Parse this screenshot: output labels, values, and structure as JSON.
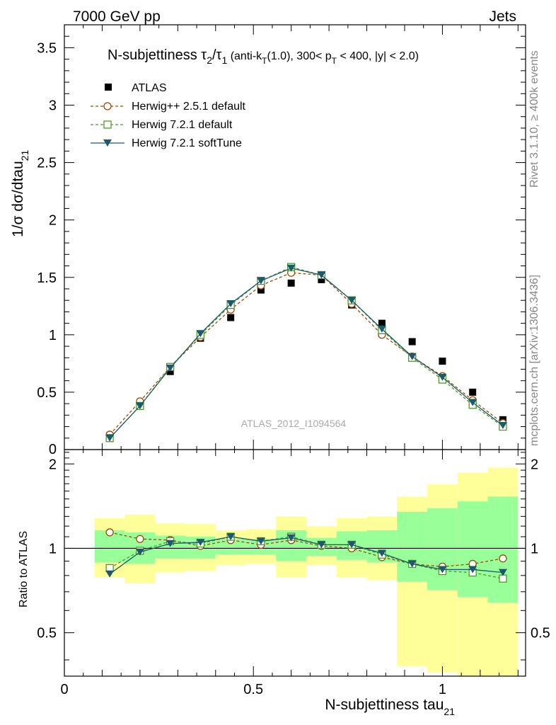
{
  "header": {
    "energy": "7000 GeV pp",
    "category": "Jets"
  },
  "side_labels": {
    "rivet": "Rivet 3.1.10, ≥ 400k events",
    "mcplots": "mcplots.cern.ch [arXiv:1306.3436]"
  },
  "colors": {
    "atlas": "#000000",
    "herwigpp": "#a04800",
    "herwig721": "#4a9c2a",
    "softtune": "#1c5a6a",
    "band_yellow": "#ffff99",
    "band_green": "#99ff99"
  },
  "chart_data": [
    {
      "type": "scatter",
      "panel": "main",
      "title": {
        "prefix": "N-subjettiness ",
        "t1": "τ",
        "s1": "2",
        "slash": "/",
        "t2": "τ",
        "s2": "1",
        "paren_a": " (anti-k",
        "sub_T1": "T",
        "paren_b": "(1.0), 300< p",
        "sub_T2": "T",
        "paren_c": " < 400, |y| < 2.0)"
      },
      "ylabel": {
        "main": "1/σ dσ/dtau",
        "sub": "21"
      },
      "xlim": [
        0,
        1.22
      ],
      "ylim": [
        0,
        3.7
      ],
      "y_ticks": [
        0.5,
        1,
        1.5,
        2,
        2.5,
        3,
        3.5
      ],
      "y_tick_labels": [
        "0.5",
        "1",
        "1.5",
        "2",
        "2.5",
        "3",
        "3.5"
      ],
      "y_zero_label": "0",
      "watermark": "ATLAS_2012_I1094564",
      "legend_position": "top-left",
      "x": [
        0.12,
        0.2,
        0.28,
        0.36,
        0.44,
        0.52,
        0.6,
        0.68,
        0.76,
        0.84,
        0.92,
        1.0,
        1.08,
        1.16
      ],
      "series": [
        {
          "name": "ATLAS",
          "marker": "square-filled",
          "values": [
            0.12,
            0.39,
            0.68,
            0.97,
            1.15,
            1.39,
            1.45,
            1.48,
            1.26,
            1.1,
            0.94,
            0.77,
            0.5,
            0.26
          ]
        },
        {
          "name": "Herwig++ 2.5.1 default",
          "marker": "circle-open",
          "values": [
            0.13,
            0.42,
            0.72,
            0.98,
            1.22,
            1.43,
            1.54,
            1.52,
            1.27,
            1.0,
            0.81,
            0.64,
            0.43,
            0.23
          ]
        },
        {
          "name": "Herwig 7.2.1 default",
          "marker": "square-open",
          "values": [
            0.1,
            0.38,
            0.72,
            1.0,
            1.26,
            1.47,
            1.59,
            1.52,
            1.3,
            1.04,
            0.8,
            0.61,
            0.39,
            0.2
          ]
        },
        {
          "name": "Herwig 7.2.1 softTune",
          "marker": "triangle-down-filled",
          "values": [
            0.1,
            0.38,
            0.71,
            1.01,
            1.27,
            1.47,
            1.58,
            1.52,
            1.3,
            1.05,
            0.81,
            0.63,
            0.41,
            0.21
          ]
        }
      ]
    },
    {
      "type": "line",
      "panel": "ratio",
      "ylabel": "Ratio to ATLAS",
      "xlabel": {
        "main": "N-subjettiness tau",
        "sub": "21"
      },
      "xlim": [
        0,
        1.22
      ],
      "ylim": [
        0.35,
        2.25
      ],
      "y_log_scale": true,
      "y_ticks": [
        0.5,
        1,
        2
      ],
      "y_tick_labels": [
        "0.5",
        "1",
        "2"
      ],
      "x_ticks": [
        0,
        0.5,
        1
      ],
      "x_tick_labels": [
        "0",
        "0.5",
        "1"
      ],
      "bin_edges": [
        0.08,
        0.16,
        0.24,
        0.32,
        0.4,
        0.48,
        0.56,
        0.64,
        0.72,
        0.8,
        0.88,
        0.96,
        1.04,
        1.12,
        1.2
      ],
      "band_outer": {
        "low": [
          0.79,
          0.75,
          0.82,
          0.83,
          0.87,
          0.88,
          0.79,
          0.87,
          0.79,
          0.77,
          0.38,
          0.36,
          0.35,
          0.35
        ],
        "high": [
          1.28,
          1.32,
          1.23,
          1.22,
          1.16,
          1.17,
          1.3,
          1.2,
          1.28,
          1.3,
          1.53,
          1.69,
          1.86,
          1.94
        ]
      },
      "band_inner": {
        "low": [
          0.89,
          0.88,
          0.92,
          0.92,
          0.95,
          0.95,
          0.9,
          0.94,
          0.91,
          0.89,
          0.76,
          0.71,
          0.67,
          0.64
        ]
      },
      "band_inner_high": [
        1.16,
        1.14,
        1.11,
        1.1,
        1.08,
        1.08,
        1.16,
        1.09,
        1.15,
        1.16,
        1.35,
        1.39,
        1.47,
        1.53
      ],
      "series": [
        {
          "name": "Herwig++ 2.5.1 default",
          "values": [
            1.14,
            1.08,
            1.07,
            1.02,
            1.07,
            1.03,
            1.07,
            1.02,
            1.0,
            0.93,
            0.88,
            0.86,
            0.88,
            0.92
          ]
        },
        {
          "name": "Herwig 7.2.1 default",
          "values": [
            0.85,
            0.98,
            1.06,
            1.04,
            1.1,
            1.06,
            1.1,
            1.03,
            1.03,
            0.95,
            0.88,
            0.83,
            0.82,
            0.78
          ]
        },
        {
          "name": "Herwig 7.2.1 softTune",
          "values": [
            0.81,
            0.97,
            1.04,
            1.05,
            1.1,
            1.06,
            1.09,
            1.03,
            1.03,
            0.96,
            0.88,
            0.84,
            0.84,
            0.82
          ]
        }
      ]
    }
  ]
}
